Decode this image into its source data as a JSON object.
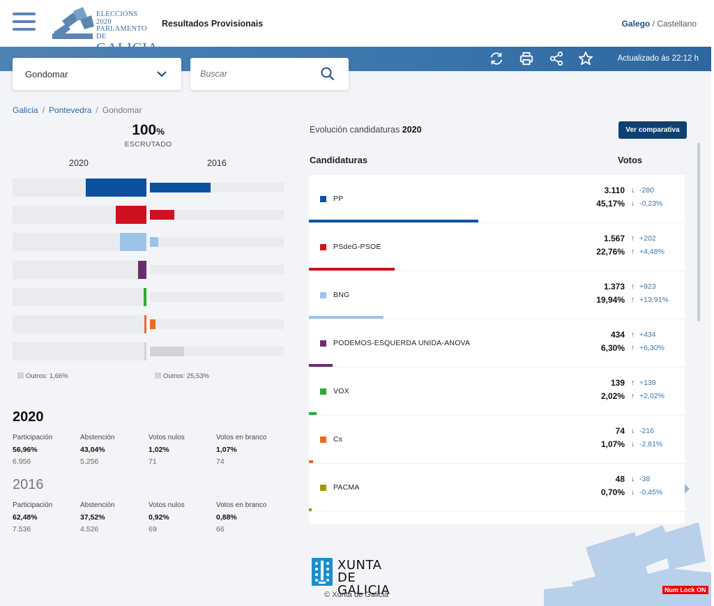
{
  "header": {
    "logo_lines": [
      "ELECCIÓNS 2020",
      "PARLAMENTO DE",
      "GALICIA"
    ],
    "title": "Resultados Provisionais",
    "lang_active": "Galego",
    "lang_sep": "/",
    "lang_other": "Castellano",
    "updated": "Actualizado ás 22:12 h",
    "icons": [
      "refresh-icon",
      "print-icon",
      "share-icon",
      "star-icon"
    ]
  },
  "filters": {
    "municipality": "Gondomar",
    "search_placeholder": "Buscar"
  },
  "breadcrumb": [
    "Galicia",
    "Pontevedra",
    "Gondomar"
  ],
  "scrutiny": {
    "value": "100",
    "unit": "%",
    "label": "ESCRUTADO",
    "year_a": "2020",
    "year_b": "2016",
    "others_a": "Outros: 1,66%",
    "others_b": "Outros: 25,53%"
  },
  "comparison_bars": [
    {
      "color": "#0b51a0",
      "pct_2020": 45.17,
      "pct_2016": 45.4
    },
    {
      "color": "#d1101f",
      "pct_2020": 22.76,
      "pct_2016": 18.28
    },
    {
      "color": "#9cc4e8",
      "pct_2020": 19.94,
      "pct_2016": 6.03
    },
    {
      "color": "#6b2d6f",
      "pct_2020": 6.3,
      "pct_2016": 0
    },
    {
      "color": "#2bad32",
      "pct_2020": 2.02,
      "pct_2016": 0
    },
    {
      "color": "#ea6b27",
      "pct_2020": 1.07,
      "pct_2016": 3.88
    },
    {
      "color": "#d4d4d4",
      "pct_2020": 1.66,
      "pct_2016": 25.53
    }
  ],
  "stats": [
    {
      "year": "2020",
      "items": [
        {
          "label": "Participación",
          "pct": "56,96%",
          "count": "6.956"
        },
        {
          "label": "Abstención",
          "pct": "43,04%",
          "count": "5.256"
        },
        {
          "label": "Votos nulos",
          "pct": "1,02%",
          "count": "71"
        },
        {
          "label": "Votos en branco",
          "pct": "1,07%",
          "count": "74"
        }
      ]
    },
    {
      "year": "2016",
      "items": [
        {
          "label": "Participación",
          "pct": "62,48%",
          "count": "7.536"
        },
        {
          "label": "Abstención",
          "pct": "37,52%",
          "count": "4.526"
        },
        {
          "label": "Votos nulos",
          "pct": "0,92%",
          "count": "69"
        },
        {
          "label": "Votos en branco",
          "pct": "0,88%",
          "count": "66"
        }
      ]
    }
  ],
  "evolution": {
    "title_prefix": "Evolución candidaturas",
    "title_year": "2020",
    "compare_button": "Ver comparativa",
    "col_parties": "Candidaturas",
    "col_votes": "Votos"
  },
  "parties": [
    {
      "name": "PP",
      "color": "#0b51a0",
      "votes": "3.110",
      "pct": "45,17%",
      "dv": "-280",
      "dp": "-0,23%",
      "dv_dir": "down",
      "dp_dir": "down",
      "share": 45.17
    },
    {
      "name": "PSdeG-PSOE",
      "color": "#d1101f",
      "votes": "1.567",
      "pct": "22,76%",
      "dv": "+202",
      "dp": "+4,48%",
      "dv_dir": "up",
      "dp_dir": "up",
      "share": 22.76
    },
    {
      "name": "BNG",
      "color": "#9cc4e8",
      "votes": "1.373",
      "pct": "19,94%",
      "dv": "+923",
      "dp": "+13,91%",
      "dv_dir": "up",
      "dp_dir": "up",
      "share": 19.94
    },
    {
      "name": "PODEMOS-ESQUERDA UNIDA-ANOVA",
      "color": "#6b2d6f",
      "votes": "434",
      "pct": "6,30%",
      "dv": "+434",
      "dp": "+6,30%",
      "dv_dir": "up",
      "dp_dir": "up",
      "share": 6.3
    },
    {
      "name": "VOX",
      "color": "#2bad32",
      "votes": "139",
      "pct": "2,02%",
      "dv": "+139",
      "dp": "+2,02%",
      "dv_dir": "up",
      "dp_dir": "up",
      "share": 2.02
    },
    {
      "name": "Cs",
      "color": "#ea6b27",
      "votes": "74",
      "pct": "1,07%",
      "dv": "-216",
      "dp": "-2,81%",
      "dv_dir": "down",
      "dp_dir": "down",
      "share": 1.07
    },
    {
      "name": "PACMA",
      "color": "#9a9a14",
      "votes": "48",
      "pct": "0,70%",
      "dv": "-38",
      "dp": "-0,45%",
      "dv_dir": "down",
      "dp_dir": "down",
      "share": 0.7
    }
  ],
  "footer": {
    "logo_line1": "XUNTA",
    "logo_line2": "DE GALICIA",
    "copyright": "Xunta de Galicia"
  },
  "status": {
    "numlock": "Num Lock ON"
  }
}
